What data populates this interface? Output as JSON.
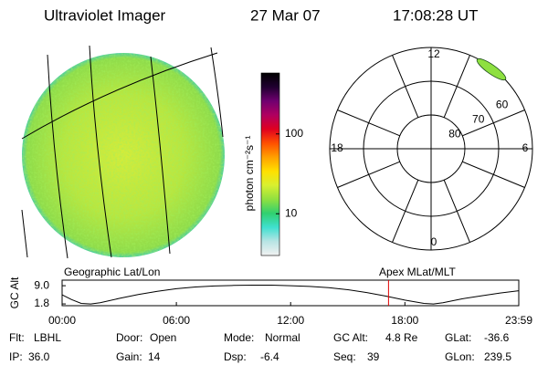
{
  "header": {
    "instrument": "Ultraviolet Imager",
    "date": "27 Mar 07",
    "time": "17:08:28 UT"
  },
  "colorbar": {
    "label": "photon cm⁻²s⁻¹",
    "scale": "log",
    "lim": [
      3,
      580
    ],
    "ticks": [
      10,
      100
    ],
    "colors": [
      "#f2f2f2",
      "#b8e4e4",
      "#40e0d0",
      "#30d070",
      "#90e040",
      "#d8f030",
      "#ffe000",
      "#ffa000",
      "#ff5000",
      "#e00020",
      "#b00060",
      "#700070",
      "#200030",
      "#000000"
    ]
  },
  "polar": {
    "rlim": [
      90,
      60
    ],
    "lat_ticks": [
      80,
      70,
      60
    ],
    "mlt_ticks": [
      12,
      6,
      0,
      18
    ]
  },
  "altitude": {
    "y_label": "GC Alt",
    "left_title": "Geographic Lat/Lon",
    "right_title": "Apex MLat/MLT",
    "xlim": [
      0,
      23.98
    ],
    "ylim": [
      1.1,
      11.2
    ],
    "xticks": [
      {
        "value": 0,
        "label": "00:00"
      },
      {
        "value": 6,
        "label": "06:00"
      },
      {
        "value": 12,
        "label": "12:00"
      },
      {
        "value": 18,
        "label": "18:00"
      },
      {
        "value": 23.98,
        "label": "23:59"
      }
    ],
    "yticks": [
      {
        "value": 9,
        "label": "9.0"
      },
      1.8
    ],
    "marker": 17.14,
    "marker_color": "#e00000",
    "hours": [
      0,
      0.5,
      1,
      1.5,
      2,
      3,
      4,
      5,
      6,
      7,
      8,
      9,
      10,
      11,
      12,
      13,
      14,
      15,
      16,
      17,
      18,
      19,
      19.5,
      20,
      21,
      22,
      23,
      23.98
    ],
    "values": [
      5.4,
      3.5,
      2.0,
      1.8,
      2.3,
      4.0,
      5.5,
      6.8,
      7.8,
      8.5,
      8.9,
      9.1,
      9.2,
      9.2,
      9.0,
      8.7,
      8.2,
      7.4,
      6.3,
      4.9,
      3.3,
      2.0,
      1.8,
      2.3,
      3.8,
      5.0,
      6.1,
      7.0
    ]
  },
  "info": [
    [
      {
        "label": "Flt:",
        "value": "LBHL"
      },
      {
        "label": "IP:",
        "value": "36.0"
      }
    ],
    [
      {
        "label": "Door:",
        "value": "Open"
      },
      {
        "label": "Gain:",
        "value": "14"
      }
    ],
    [
      {
        "label": "Mode:",
        "value": "Normal"
      },
      {
        "label": "Dsp:",
        "value": "-6.4"
      }
    ],
    [
      {
        "label": "GC Alt:",
        "value": "4.8 Re"
      },
      {
        "label": "Seq:",
        "value": "39"
      }
    ],
    [
      {
        "label": "GLat:",
        "value": "-36.6"
      },
      {
        "label": "GLon:",
        "value": "239.5"
      }
    ]
  ]
}
